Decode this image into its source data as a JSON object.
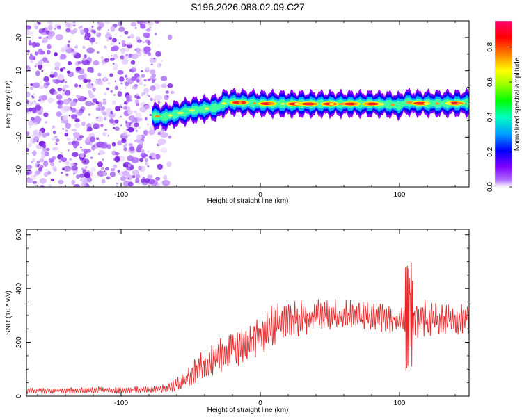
{
  "page": {
    "title": "S196.2026.088.02.09.C27"
  },
  "chart_data": [
    {
      "type": "heatmap",
      "title": "S196.2026.088.02.09.C27",
      "xlabel": "Height of straight line (km)",
      "ylabel": "Frequency (Hz)",
      "xlim": [
        -168,
        150
      ],
      "ylim": [
        -25,
        25
      ],
      "xticks": [
        -100,
        0,
        100
      ],
      "yticks": [
        -20,
        -10,
        0,
        10,
        20
      ],
      "xtick_labels": [
        "-100",
        "0",
        "100"
      ],
      "ytick_labels": [
        "-20",
        "-10",
        "0",
        "10",
        "20"
      ],
      "colorbar": {
        "label": "Normalized spectral amplitude",
        "range": [
          0,
          0.95
        ],
        "ticks": [
          0.0,
          0.2,
          0.4,
          0.6,
          0.8
        ],
        "tick_labels": [
          "0.0",
          "0.2",
          "0.4",
          "0.6",
          "0.8"
        ],
        "colors": [
          "#ffffff",
          "#8800ff",
          "#0000ff",
          "#00aaff",
          "#00ffaa",
          "#00ff00",
          "#aaff00",
          "#ffff00",
          "#ff8800",
          "#ff0000",
          "#ff0055"
        ]
      },
      "noise_region_x": [
        -168,
        -75
      ],
      "ridge": {
        "x": [
          -78,
          -70,
          -60,
          -50,
          -40,
          -30,
          -25,
          -20,
          -10,
          0,
          20,
          40,
          60,
          80,
          95,
          100,
          105,
          110,
          130,
          150
        ],
        "y": [
          -3.5,
          -4,
          -3,
          -2,
          -1.5,
          -1,
          0.5,
          0.5,
          0.3,
          0.1,
          0,
          0,
          0,
          0,
          -0.2,
          -0.6,
          0.6,
          0.2,
          0.1,
          0.3
        ],
        "peak_x": [
          -15,
          5,
          25,
          35,
          50,
          65,
          80,
          115,
          140
        ]
      }
    },
    {
      "type": "line",
      "xlabel": "Height of straight line (km)",
      "ylabel": "SNR (10 * v/v)",
      "xlim": [
        -168,
        150
      ],
      "ylim": [
        0,
        620
      ],
      "xticks": [
        -100,
        0,
        100
      ],
      "yticks": [
        0,
        200,
        400,
        600
      ],
      "xtick_labels": [
        "-100",
        "0",
        "100"
      ],
      "ytick_labels": [
        "0",
        "200",
        "400",
        "600"
      ],
      "series": [
        {
          "name": "SNR",
          "color": "#e8282a",
          "envelope_x": [
            -168,
            -100,
            -75,
            -65,
            -55,
            -40,
            -25,
            -10,
            0,
            10,
            20,
            40,
            60,
            80,
            100,
            104,
            106,
            108,
            110,
            130,
            150
          ],
          "envelope_y": [
            20,
            22,
            25,
            30,
            60,
            120,
            160,
            200,
            230,
            260,
            285,
            300,
            300,
            290,
            285,
            280,
            300,
            260,
            290,
            280,
            290
          ],
          "amplitude": [
            12,
            12,
            12,
            20,
            40,
            60,
            70,
            80,
            80,
            80,
            70,
            60,
            60,
            55,
            50,
            100,
            320,
            240,
            80,
            60,
            60
          ]
        }
      ]
    }
  ]
}
